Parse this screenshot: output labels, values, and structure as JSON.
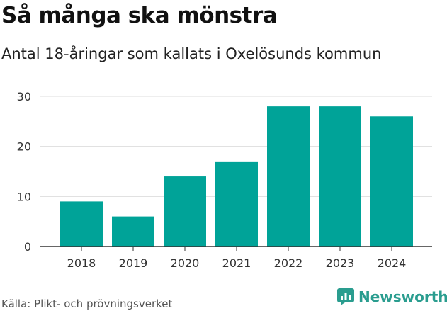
{
  "title": "Så många ska mönstra",
  "subtitle": "Antal 18-åringar som kallats i Oxelösunds kommun",
  "source": "Källa: Plikt- och prövningsverket",
  "brand": "Newsworthy",
  "colors": {
    "bar": "#00A398",
    "grid": "#DDDDDD",
    "axis": "#333333",
    "brand": "#2A9D8F"
  },
  "chart_data": {
    "type": "bar",
    "title": "Så många ska mönstra",
    "subtitle": "Antal 18-åringar som kallats i Oxelösunds kommun",
    "xlabel": "",
    "ylabel": "",
    "categories": [
      "2018",
      "2019",
      "2020",
      "2021",
      "2022",
      "2023",
      "2024"
    ],
    "values": [
      9,
      6,
      14,
      17,
      28,
      28,
      26
    ],
    "ylim": [
      0,
      30
    ],
    "yticks": [
      0,
      10,
      20,
      30
    ],
    "grid": true
  }
}
